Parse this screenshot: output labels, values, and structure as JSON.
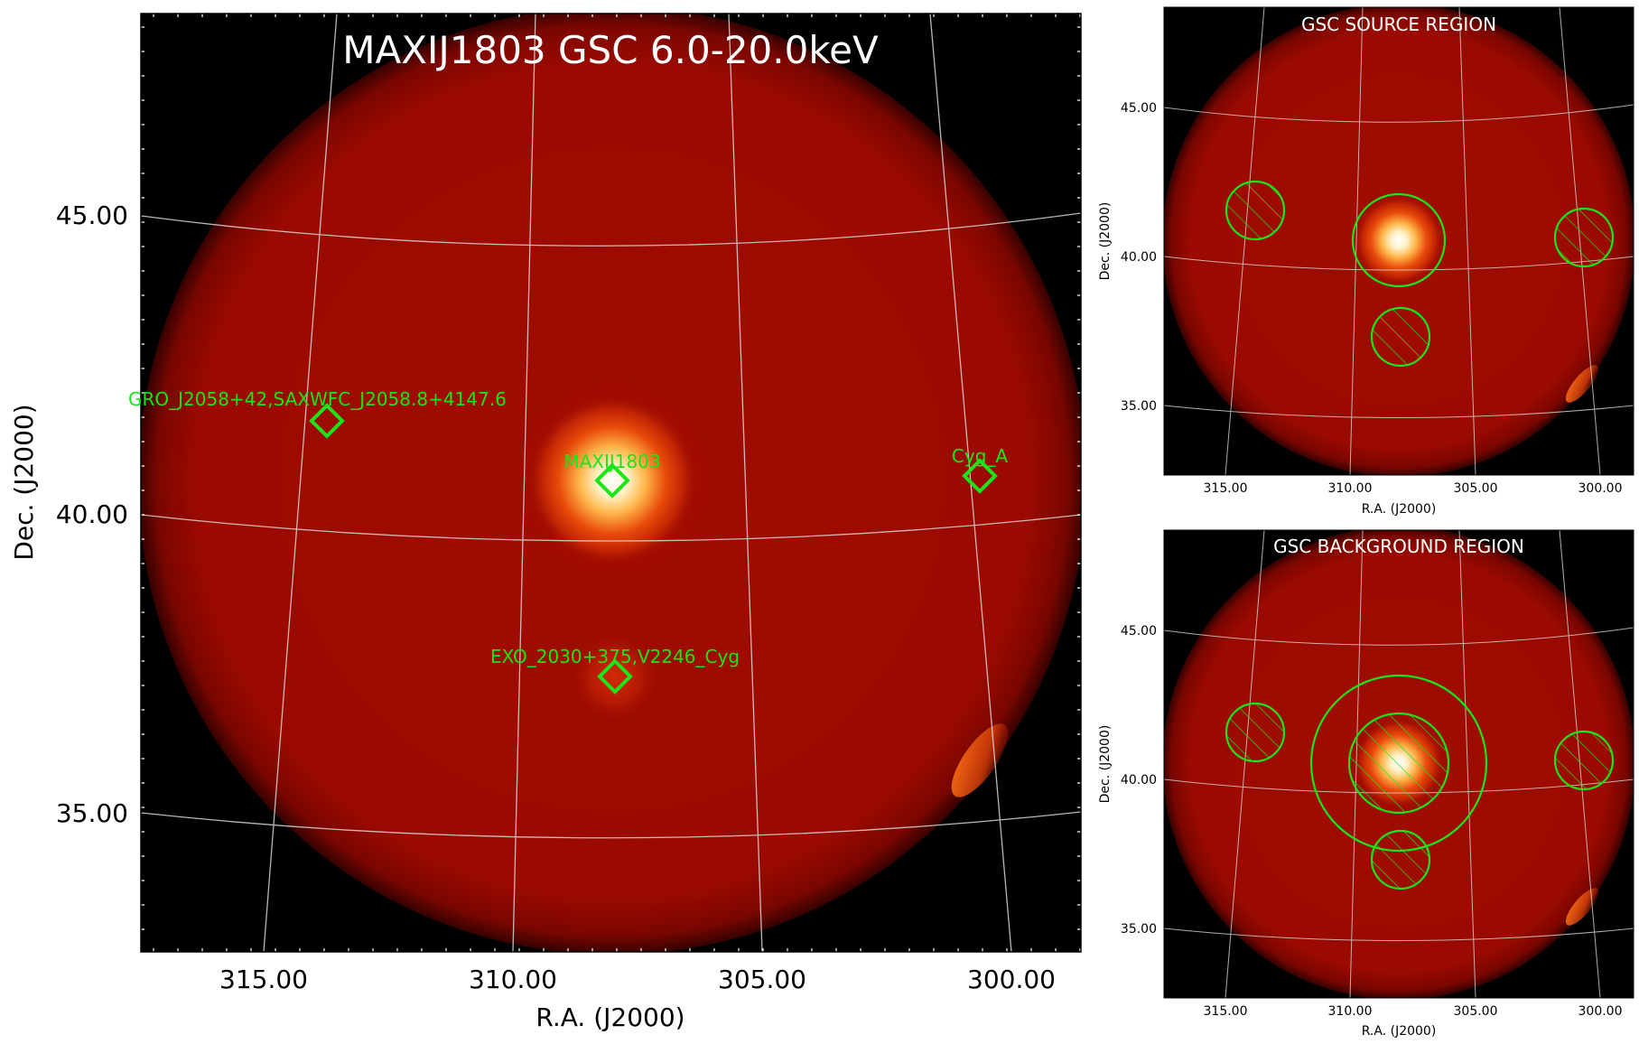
{
  "main": {
    "title": "MAXIJ1803 GSC 6.0-20.0keV",
    "xlabel": "R.A. (J2000)",
    "ylabel": "Dec. (J2000)",
    "xticks": [
      "315.00",
      "310.00",
      "305.00",
      "300.00"
    ],
    "yticks": [
      "45.00",
      "40.00",
      "35.00"
    ],
    "sources": [
      {
        "id": "gro",
        "label": "GRO_J2058+42,SAXWFC_J2058.8+4147.6"
      },
      {
        "id": "maxi",
        "label": "MAXIJ1803"
      },
      {
        "id": "cyga",
        "label": "Cyg_A"
      },
      {
        "id": "exo",
        "label": "EXO_2030+375,V2246_Cyg"
      }
    ]
  },
  "source_region": {
    "title": "GSC SOURCE REGION",
    "xlabel": "R.A. (J2000)",
    "ylabel": "Dec. (J2000)",
    "xticks": [
      "315.00",
      "310.00",
      "305.00",
      "300.00"
    ],
    "yticks": [
      "45.00",
      "40.00",
      "35.00"
    ]
  },
  "background_region": {
    "title": "GSC BACKGROUND REGION",
    "xlabel": "R.A. (J2000)",
    "ylabel": "Dec. (J2000)",
    "xticks": [
      "315.00",
      "310.00",
      "305.00",
      "300.00"
    ],
    "yticks": [
      "45.00",
      "40.00",
      "35.00"
    ]
  },
  "colors": {
    "disk": "#9a0a00",
    "marker": "#19e619",
    "grid": "#d8d8d8",
    "background": "#000000"
  }
}
